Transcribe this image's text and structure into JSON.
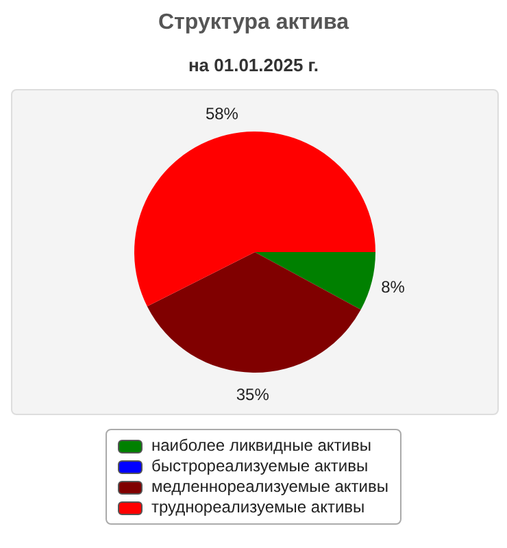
{
  "chart_data": {
    "type": "pie",
    "title": "Структура актива",
    "subtitle": "на 01.01.2025 г.",
    "categories": [
      "наиболее ликвидные активы",
      "быстрореализуемые активы",
      "медленнореализуемые активы",
      "труднореализуемые активы"
    ],
    "values": [
      8,
      0,
      35,
      58
    ],
    "value_labels": [
      "8%",
      null,
      "35%",
      "58%"
    ],
    "colors": [
      "#008000",
      "#0000ff",
      "#800000",
      "#ff0000"
    ],
    "legend": "bottom"
  }
}
